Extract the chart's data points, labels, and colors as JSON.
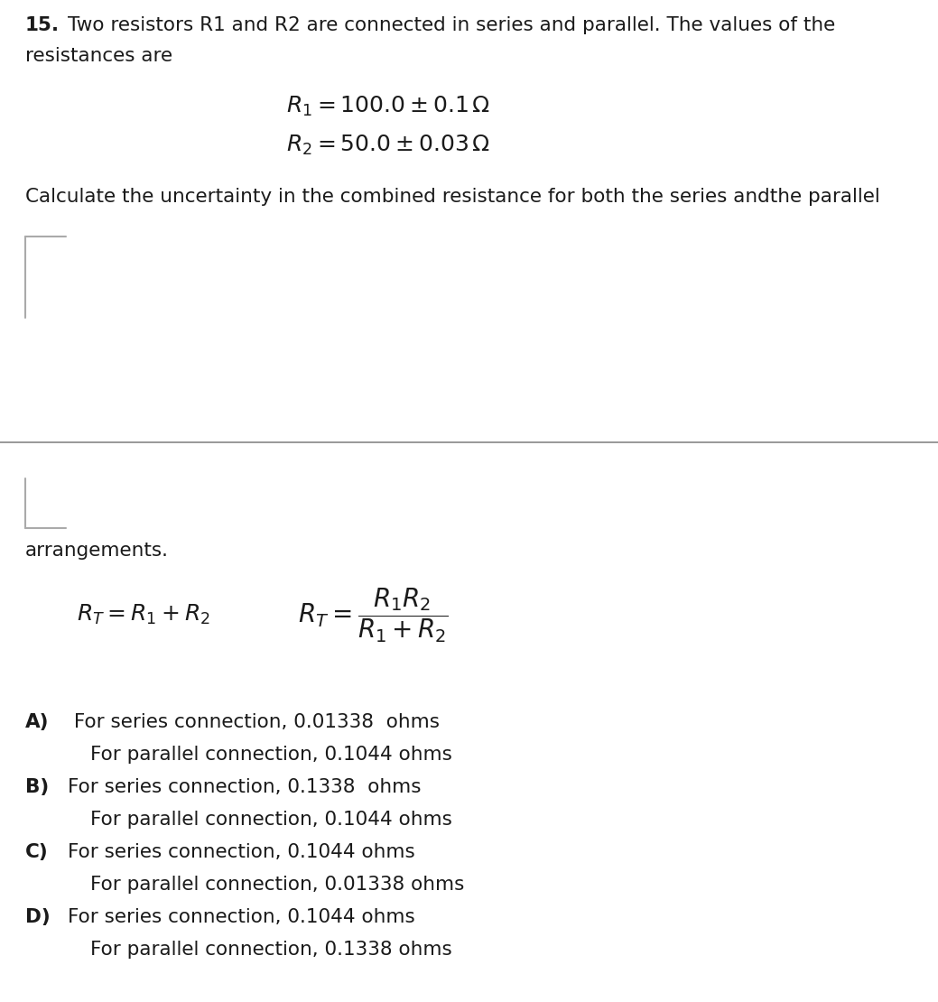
{
  "bg_color": "#ffffff",
  "text_color": "#1a1a1a",
  "bracket_color": "#aaaaaa",
  "divider_color": "#888888",
  "question_number": "15.",
  "r1_formula": "$R_1 = 100.0 \\pm 0.1\\,\\Omega$",
  "r2_formula": "$R_2 = 50.0 \\pm 0.03\\,\\Omega$",
  "series_formula": "$R_T = R_1 + R_2$",
  "parallel_formula": "$R_T = \\dfrac{R_1 R_2}{R_1 + R_2}$",
  "font_size_main": 15.5,
  "font_size_formula": 18,
  "font_size_options": 15.5,
  "fig_width": 10.39,
  "fig_height": 11.1,
  "dpi": 100
}
